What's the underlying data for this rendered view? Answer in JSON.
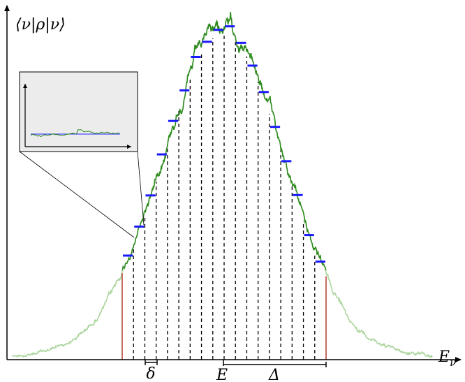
{
  "axes": {
    "y_label": "⟨ν|ρ|ν⟩",
    "x_label": {
      "base": "E",
      "subscript": "ν"
    }
  },
  "annotations": {
    "bin_width": "δ",
    "energy": "E",
    "window": "Δ"
  }
}
